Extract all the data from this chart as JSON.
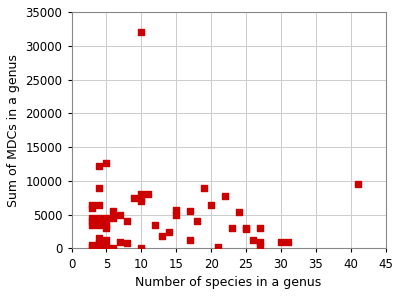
{
  "x": [
    3,
    3,
    3,
    3,
    3,
    3,
    3,
    4,
    4,
    4,
    4,
    4,
    4,
    4,
    4,
    4,
    5,
    5,
    5,
    5,
    5,
    5,
    6,
    6,
    6,
    7,
    7,
    8,
    8,
    9,
    10,
    10,
    10,
    10,
    10,
    11,
    12,
    13,
    14,
    15,
    15,
    17,
    17,
    18,
    19,
    20,
    21,
    22,
    23,
    24,
    25,
    25,
    26,
    27,
    27,
    27,
    30,
    31,
    41
  ],
  "y": [
    6500,
    6000,
    4500,
    4000,
    3500,
    500,
    200,
    12200,
    8900,
    6500,
    4500,
    4000,
    3500,
    1500,
    800,
    100,
    12700,
    4500,
    3500,
    3000,
    1200,
    400,
    5500,
    4500,
    100,
    5000,
    1000,
    4000,
    800,
    7500,
    32000,
    8000,
    7500,
    7000,
    50,
    8000,
    3500,
    1800,
    2500,
    5700,
    5000,
    5600,
    1200,
    4000,
    9000,
    6500,
    200,
    7800,
    3000,
    5400,
    3000,
    2900,
    1200,
    3100,
    1000,
    300,
    900,
    900,
    9500
  ],
  "marker_color": "#cc0000",
  "marker_size": 18,
  "marker_style": "s",
  "xlabel": "Number of species in a genus",
  "ylabel": "Sum of MDCs in a genus",
  "xlim": [
    0,
    45
  ],
  "ylim": [
    0,
    35000
  ],
  "xticks": [
    0,
    5,
    10,
    15,
    20,
    25,
    30,
    35,
    40,
    45
  ],
  "yticks": [
    0,
    5000,
    10000,
    15000,
    20000,
    25000,
    30000,
    35000
  ],
  "ytick_labels": [
    "0",
    "5000",
    "10000",
    "15000",
    "20000",
    "25000",
    "30000",
    "35000"
  ],
  "grid": true,
  "background_color": "#ffffff",
  "xlabel_fontsize": 9,
  "ylabel_fontsize": 9,
  "tick_fontsize": 8.5
}
